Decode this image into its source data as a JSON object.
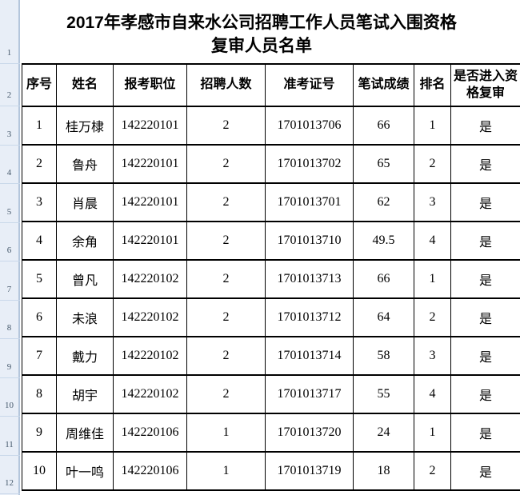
{
  "title": {
    "lines": [
      "2017年孝感市自来水公司招聘工作人员笔试入围资格",
      "复审人员名单"
    ],
    "full": "2017年孝感市自来水公司招聘工作人员笔试入围资格复审人员名单"
  },
  "spreadsheet": {
    "gutter_row_numbers": [
      "1",
      "2",
      "3",
      "4",
      "5",
      "6",
      "7",
      "8",
      "9",
      "10",
      "11",
      "12"
    ]
  },
  "table": {
    "headers": [
      "序号",
      "姓名",
      "报考职位",
      "招聘人数",
      "准考证号",
      "笔试成绩",
      "排名",
      "是否进入资格复审"
    ],
    "column_keys": [
      "no",
      "name",
      "position-code",
      "recruit-count",
      "ticket-no",
      "score",
      "rank",
      "pass-review"
    ],
    "rows": [
      [
        "1",
        "桂万棣",
        "142220101",
        "2",
        "1701013706",
        "66",
        "1",
        "是"
      ],
      [
        "2",
        "鲁舟",
        "142220101",
        "2",
        "1701013702",
        "65",
        "2",
        "是"
      ],
      [
        "3",
        "肖晨",
        "142220101",
        "2",
        "1701013701",
        "62",
        "3",
        "是"
      ],
      [
        "4",
        "余角",
        "142220101",
        "2",
        "1701013710",
        "49.5",
        "4",
        "是"
      ],
      [
        "5",
        "曾凡",
        "142220102",
        "2",
        "1701013713",
        "66",
        "1",
        "是"
      ],
      [
        "6",
        "未浪",
        "142220102",
        "2",
        "1701013712",
        "64",
        "2",
        "是"
      ],
      [
        "7",
        "戴力",
        "142220102",
        "2",
        "1701013714",
        "58",
        "3",
        "是"
      ],
      [
        "8",
        "胡宇",
        "142220102",
        "2",
        "1701013717",
        "55",
        "4",
        "是"
      ],
      [
        "9",
        "周维佳",
        "142220106",
        "1",
        "1701013720",
        "24",
        "1",
        "是"
      ],
      [
        "10",
        "叶一鸣",
        "142220106",
        "1",
        "1701013719",
        "18",
        "2",
        "是"
      ]
    ]
  },
  "colors": {
    "gutter_background": "#e8eef7",
    "gutter_divider": "#b4c6dc",
    "gutter_separator": "#c9d8ea",
    "gutter_text": "#45586b",
    "grid_border": "#000000",
    "text": "#000000",
    "background": "#ffffff"
  }
}
